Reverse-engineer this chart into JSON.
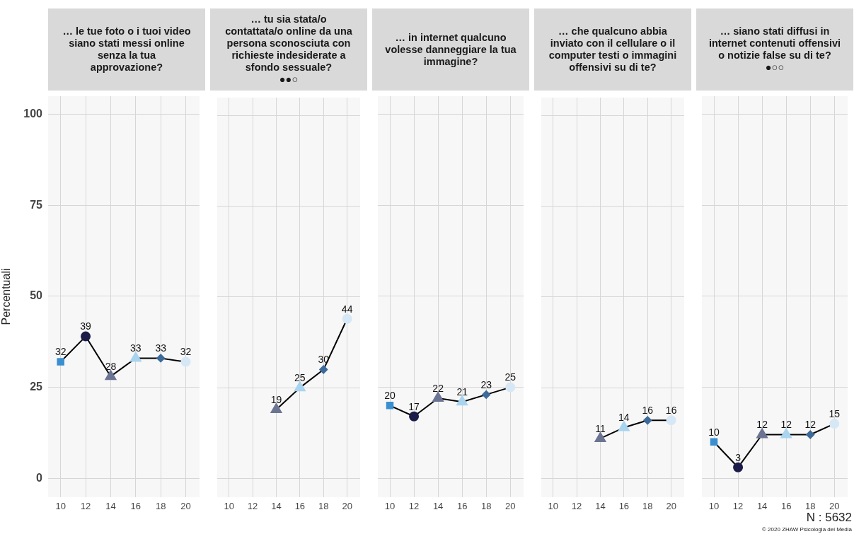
{
  "chart_data": [
    {
      "type": "line",
      "title": "… le tue foto o i tuoi video\nsiano stati messi online\nsenza la tua\napprovazione?",
      "ylabel": "Percentuali",
      "x": [
        10,
        12,
        14,
        16,
        18,
        20
      ],
      "series": [
        {
          "color": "#000000",
          "values": [
            32,
            39,
            28,
            33,
            33,
            32
          ],
          "colors": [
            "#3a8fd0",
            "#1c1c4a",
            "#6b7593",
            "#a8d4f0",
            "#3d6a99",
            "#d6e8f5"
          ],
          "marker": [
            "square",
            "circle",
            "triangle",
            "triangle",
            "diamond",
            "circle"
          ]
        }
      ],
      "xlim": [
        9,
        21.1
      ],
      "xticks": [
        10,
        12,
        14,
        16,
        18,
        20
      ],
      "ylim": [
        -5.2,
        105
      ],
      "yticks": [
        0,
        25,
        50,
        75,
        100
      ],
      "grid": true,
      "data_labels": true,
      "legend": false
    },
    {
      "type": "line",
      "title": "… tu sia stata/o\ncontattata/o online da una\npersona sconosciuta con\nrichieste indesiderate a\nsfondo sessuale?\n●●○",
      "x": [
        14,
        16,
        18,
        20
      ],
      "series": [
        {
          "color": "#000000",
          "values": [
            19,
            25,
            30,
            44
          ],
          "colors": [
            "#6b7593",
            "#a8d4f0",
            "#3d6a99",
            "#d6e8f5"
          ],
          "marker": [
            "triangle",
            "triangle",
            "diamond",
            "circle"
          ]
        }
      ],
      "xlim": [
        9,
        21.1
      ],
      "xticks": [
        10,
        12,
        14,
        16,
        18,
        20
      ],
      "ylim": [
        -5.2,
        105
      ],
      "yticks": [
        0,
        25,
        50,
        75,
        100
      ],
      "grid": true,
      "data_labels": true,
      "legend": false,
      "tick_labels": "x"
    },
    {
      "type": "line",
      "title": "… in internet qualcuno\nvolesse danneggiare la tua\nimmagine?",
      "x": [
        10,
        12,
        14,
        16,
        18,
        20
      ],
      "series": [
        {
          "color": "#000000",
          "values": [
            20,
            17,
            22,
            21,
            23,
            25
          ],
          "colors": [
            "#3a8fd0",
            "#1c1c4a",
            "#6b7593",
            "#a8d4f0",
            "#3d6a99",
            "#d6e8f5"
          ],
          "marker": [
            "square",
            "circle",
            "triangle",
            "triangle",
            "diamond",
            "circle"
          ]
        }
      ],
      "xlim": [
        9,
        21.1
      ],
      "xticks": [
        10,
        12,
        14,
        16,
        18,
        20
      ],
      "ylim": [
        -5.2,
        105
      ],
      "yticks": [
        0,
        25,
        50,
        75,
        100
      ],
      "grid": true,
      "data_labels": true,
      "legend": false,
      "tick_labels": "x"
    },
    {
      "type": "line",
      "title": "… che qualcuno abbia\ninviato con il cellulare o il\ncomputer testi o immagini\noffensivi su di te?",
      "x": [
        14,
        16,
        18,
        20
      ],
      "series": [
        {
          "color": "#000000",
          "values": [
            11,
            14,
            16,
            16
          ],
          "colors": [
            "#6b7593",
            "#a8d4f0",
            "#3d6a99",
            "#d6e8f5"
          ],
          "marker": [
            "triangle",
            "triangle",
            "diamond",
            "circle"
          ]
        }
      ],
      "xlim": [
        9,
        21.1
      ],
      "xticks": [
        10,
        12,
        14,
        16,
        18,
        20
      ],
      "ylim": [
        -5.2,
        105
      ],
      "yticks": [
        0,
        25,
        50,
        75,
        100
      ],
      "grid": true,
      "data_labels": true,
      "legend": false,
      "tick_labels": "x"
    },
    {
      "type": "line",
      "title": "… siano stati diffusi in\ninternet contenuti offensivi\no notizie false su di te?\n●○○",
      "x": [
        10,
        12,
        14,
        16,
        18,
        20
      ],
      "series": [
        {
          "color": "#000000",
          "values": [
            10,
            3,
            12,
            12,
            12,
            15
          ],
          "colors": [
            "#3a8fd0",
            "#1c1c4a",
            "#6b7593",
            "#a8d4f0",
            "#3d6a99",
            "#d6e8f5"
          ],
          "marker": [
            "square",
            "circle",
            "triangle",
            "triangle",
            "diamond",
            "circle"
          ]
        }
      ],
      "xlim": [
        9,
        21.1
      ],
      "xticks": [
        10,
        12,
        14,
        16,
        18,
        20
      ],
      "ylim": [
        -5.2,
        105
      ],
      "yticks": [
        0,
        25,
        50,
        75,
        100
      ],
      "grid": true,
      "data_labels": true,
      "legend": false,
      "tick_labels": "x",
      "annotations": [
        "N : 5632",
        "© 2020 ZHAW Psicologia dei Media"
      ]
    }
  ]
}
